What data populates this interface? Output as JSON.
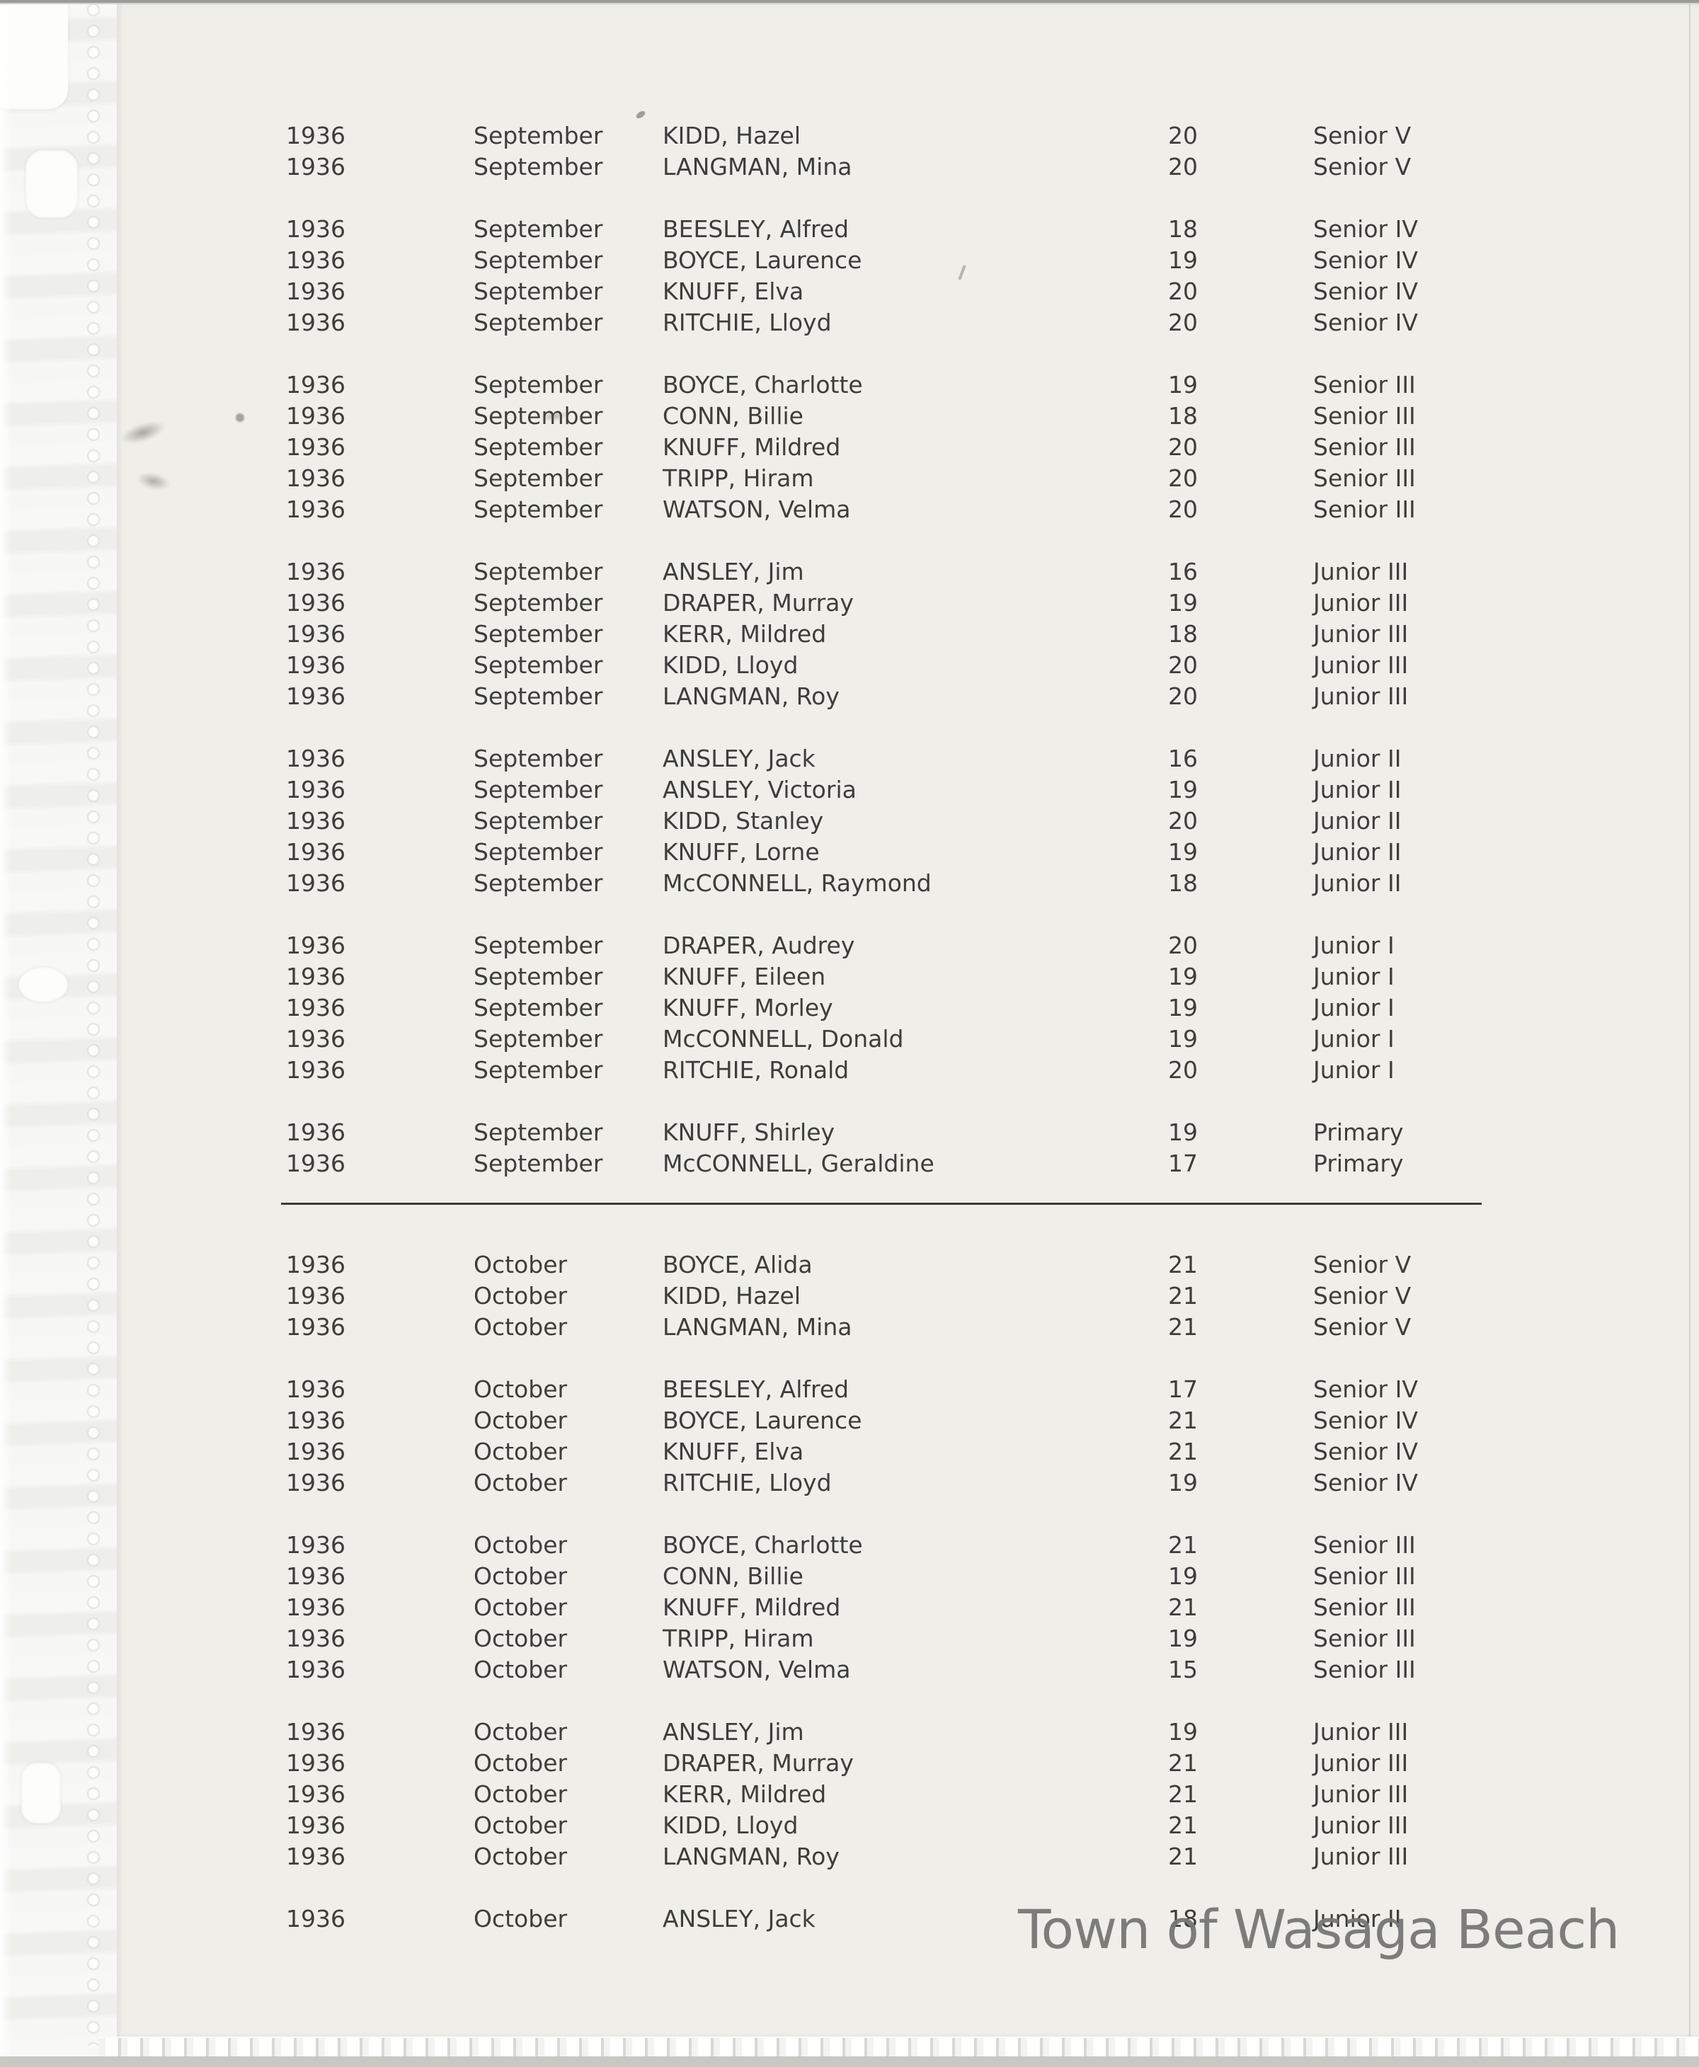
{
  "watermark": "Town of Wasaga Beach",
  "table": {
    "sections": [
      {
        "groups": [
          {
            "rows": [
              {
                "year": "1936",
                "month": "September",
                "name": "KIDD, Hazel",
                "days": "20",
                "level": "Senior V"
              },
              {
                "year": "1936",
                "month": "September",
                "name": "LANGMAN, Mina",
                "days": "20",
                "level": "Senior V"
              }
            ]
          },
          {
            "rows": [
              {
                "year": "1936",
                "month": "September",
                "name": "BEESLEY, Alfred",
                "days": "18",
                "level": "Senior IV"
              },
              {
                "year": "1936",
                "month": "September",
                "name": "BOYCE, Laurence",
                "days": "19",
                "level": "Senior IV"
              },
              {
                "year": "1936",
                "month": "September",
                "name": "KNUFF, Elva",
                "days": "20",
                "level": "Senior IV"
              },
              {
                "year": "1936",
                "month": "September",
                "name": "RITCHIE, Lloyd",
                "days": "20",
                "level": "Senior IV"
              }
            ]
          },
          {
            "rows": [
              {
                "year": "1936",
                "month": "September",
                "name": "BOYCE, Charlotte",
                "days": "19",
                "level": "Senior III"
              },
              {
                "year": "1936",
                "month": "September",
                "name": "CONN, Billie",
                "days": "18",
                "level": "Senior III"
              },
              {
                "year": "1936",
                "month": "September",
                "name": "KNUFF, Mildred",
                "days": "20",
                "level": "Senior III"
              },
              {
                "year": "1936",
                "month": "September",
                "name": "TRIPP, Hiram",
                "days": "20",
                "level": "Senior III"
              },
              {
                "year": "1936",
                "month": "September",
                "name": "WATSON, Velma",
                "days": "20",
                "level": "Senior III"
              }
            ]
          },
          {
            "rows": [
              {
                "year": "1936",
                "month": "September",
                "name": "ANSLEY, Jim",
                "days": "16",
                "level": "Junior III"
              },
              {
                "year": "1936",
                "month": "September",
                "name": "DRAPER, Murray",
                "days": "19",
                "level": "Junior III"
              },
              {
                "year": "1936",
                "month": "September",
                "name": "KERR, Mildred",
                "days": "18",
                "level": "Junior III"
              },
              {
                "year": "1936",
                "month": "September",
                "name": "KIDD, Lloyd",
                "days": "20",
                "level": "Junior III"
              },
              {
                "year": "1936",
                "month": "September",
                "name": "LANGMAN, Roy",
                "days": "20",
                "level": "Junior III"
              }
            ]
          },
          {
            "rows": [
              {
                "year": "1936",
                "month": "September",
                "name": "ANSLEY, Jack",
                "days": "16",
                "level": "Junior II"
              },
              {
                "year": "1936",
                "month": "September",
                "name": "ANSLEY, Victoria",
                "days": "19",
                "level": "Junior II"
              },
              {
                "year": "1936",
                "month": "September",
                "name": "KIDD, Stanley",
                "days": "20",
                "level": "Junior II"
              },
              {
                "year": "1936",
                "month": "September",
                "name": "KNUFF, Lorne",
                "days": "19",
                "level": "Junior II"
              },
              {
                "year": "1936",
                "month": "September",
                "name": "McCONNELL, Raymond",
                "days": "18",
                "level": "Junior II"
              }
            ]
          },
          {
            "rows": [
              {
                "year": "1936",
                "month": "September",
                "name": "DRAPER, Audrey",
                "days": "20",
                "level": "Junior I"
              },
              {
                "year": "1936",
                "month": "September",
                "name": "KNUFF, Eileen",
                "days": "19",
                "level": "Junior I"
              },
              {
                "year": "1936",
                "month": "September",
                "name": "KNUFF, Morley",
                "days": "19",
                "level": "Junior I"
              },
              {
                "year": "1936",
                "month": "September",
                "name": "McCONNELL, Donald",
                "days": "19",
                "level": "Junior I"
              },
              {
                "year": "1936",
                "month": "September",
                "name": "RITCHIE, Ronald",
                "days": "20",
                "level": "Junior I"
              }
            ]
          },
          {
            "rows": [
              {
                "year": "1936",
                "month": "September",
                "name": "KNUFF, Shirley",
                "days": "19",
                "level": "Primary"
              },
              {
                "year": "1936",
                "month": "September",
                "name": "McCONNELL, Geraldine",
                "days": "17",
                "level": "Primary"
              }
            ]
          }
        ]
      },
      {
        "groups": [
          {
            "rows": [
              {
                "year": "1936",
                "month": "October",
                "name": "BOYCE, Alida",
                "days": "21",
                "level": "Senior V"
              },
              {
                "year": "1936",
                "month": "October",
                "name": "KIDD, Hazel",
                "days": "21",
                "level": "Senior V"
              },
              {
                "year": "1936",
                "month": "October",
                "name": "LANGMAN, Mina",
                "days": "21",
                "level": "Senior V"
              }
            ]
          },
          {
            "rows": [
              {
                "year": "1936",
                "month": "October",
                "name": "BEESLEY, Alfred",
                "days": "17",
                "level": "Senior IV"
              },
              {
                "year": "1936",
                "month": "October",
                "name": "BOYCE, Laurence",
                "days": "21",
                "level": "Senior IV"
              },
              {
                "year": "1936",
                "month": "October",
                "name": "KNUFF, Elva",
                "days": "21",
                "level": "Senior IV"
              },
              {
                "year": "1936",
                "month": "October",
                "name": "RITCHIE, Lloyd",
                "days": "19",
                "level": "Senior IV"
              }
            ]
          },
          {
            "rows": [
              {
                "year": "1936",
                "month": "October",
                "name": "BOYCE, Charlotte",
                "days": "21",
                "level": "Senior III"
              },
              {
                "year": "1936",
                "month": "October",
                "name": "CONN, Billie",
                "days": "19",
                "level": "Senior III"
              },
              {
                "year": "1936",
                "month": "October",
                "name": "KNUFF, Mildred",
                "days": "21",
                "level": "Senior III"
              },
              {
                "year": "1936",
                "month": "October",
                "name": "TRIPP, Hiram",
                "days": "19",
                "level": "Senior III"
              },
              {
                "year": "1936",
                "month": "October",
                "name": "WATSON, Velma",
                "days": "15",
                "level": "Senior III"
              }
            ]
          },
          {
            "rows": [
              {
                "year": "1936",
                "month": "October",
                "name": "ANSLEY, Jim",
                "days": "19",
                "level": "Junior III"
              },
              {
                "year": "1936",
                "month": "October",
                "name": "DRAPER, Murray",
                "days": "21",
                "level": "Junior III"
              },
              {
                "year": "1936",
                "month": "October",
                "name": "KERR, Mildred",
                "days": "21",
                "level": "Junior III"
              },
              {
                "year": "1936",
                "month": "October",
                "name": "KIDD, Lloyd",
                "days": "21",
                "level": "Junior III"
              },
              {
                "year": "1936",
                "month": "October",
                "name": "LANGMAN, Roy",
                "days": "21",
                "level": "Junior III"
              }
            ]
          },
          {
            "rows": [
              {
                "year": "1936",
                "month": "October",
                "name": "ANSLEY, Jack",
                "days": "18",
                "level": "Junior II"
              }
            ]
          }
        ]
      }
    ]
  }
}
